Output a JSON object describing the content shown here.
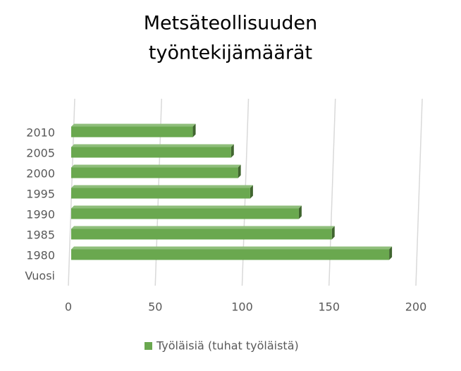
{
  "chart_data": {
    "type": "bar",
    "orientation": "horizontal",
    "title": [
      "Metsäteollisuuden",
      "työntekijämäärät"
    ],
    "categories": [
      "Vuosi",
      "1980",
      "1985",
      "1990",
      "1995",
      "2000",
      "2005",
      "2010"
    ],
    "series": [
      {
        "name": "Työläisiä (tuhat työläistä)",
        "color": "#6aa84f",
        "values": [
          null,
          183,
          150,
          131,
          103,
          96,
          92,
          70
        ]
      }
    ],
    "xlim": [
      0,
      200
    ],
    "xticks": [
      0,
      50,
      100,
      150,
      200
    ],
    "grid": true,
    "legend": "bottom"
  }
}
